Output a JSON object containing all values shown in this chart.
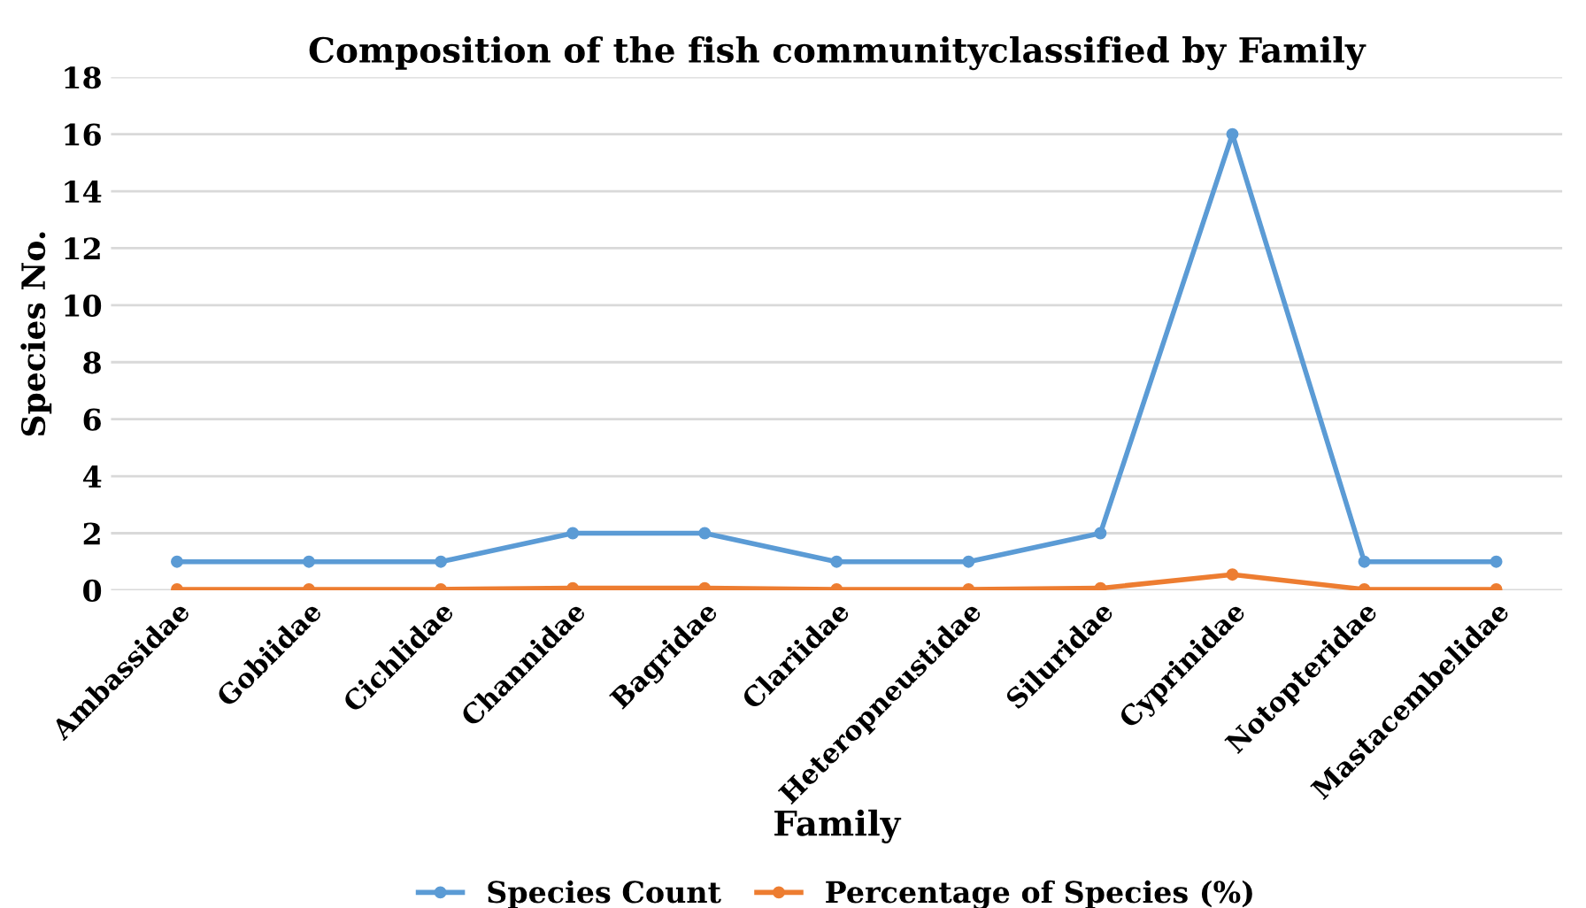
{
  "chart_data": {
    "type": "line",
    "title": "Composition of the fish communityclassified by Family",
    "xlabel": "Family",
    "ylabel": "Species No.",
    "categories": [
      "Ambassidae",
      "Gobiidae",
      "Cichlidae",
      "Channidae",
      "Bagridae",
      "Clariidae",
      "Heteropneustidae",
      "Siluridae",
      "Cyprinidae",
      "Notopteridae",
      "Mastacembelidae"
    ],
    "series": [
      {
        "name": "Species Count",
        "color": "#5b9bd5",
        "values": [
          1,
          1,
          1,
          2,
          2,
          1,
          1,
          2,
          16,
          1,
          1
        ]
      },
      {
        "name": "Percentage of Species (%)",
        "color": "#ed7d31",
        "values": [
          0.03,
          0.03,
          0.03,
          0.07,
          0.07,
          0.03,
          0.03,
          0.07,
          0.55,
          0.03,
          0.03
        ]
      }
    ],
    "ylim": [
      0,
      18
    ],
    "yticks": [
      0,
      2,
      4,
      6,
      8,
      10,
      12,
      14,
      16,
      18
    ],
    "grid": "y",
    "legend": "bottom",
    "marker": "circle",
    "line_style": "solid"
  }
}
